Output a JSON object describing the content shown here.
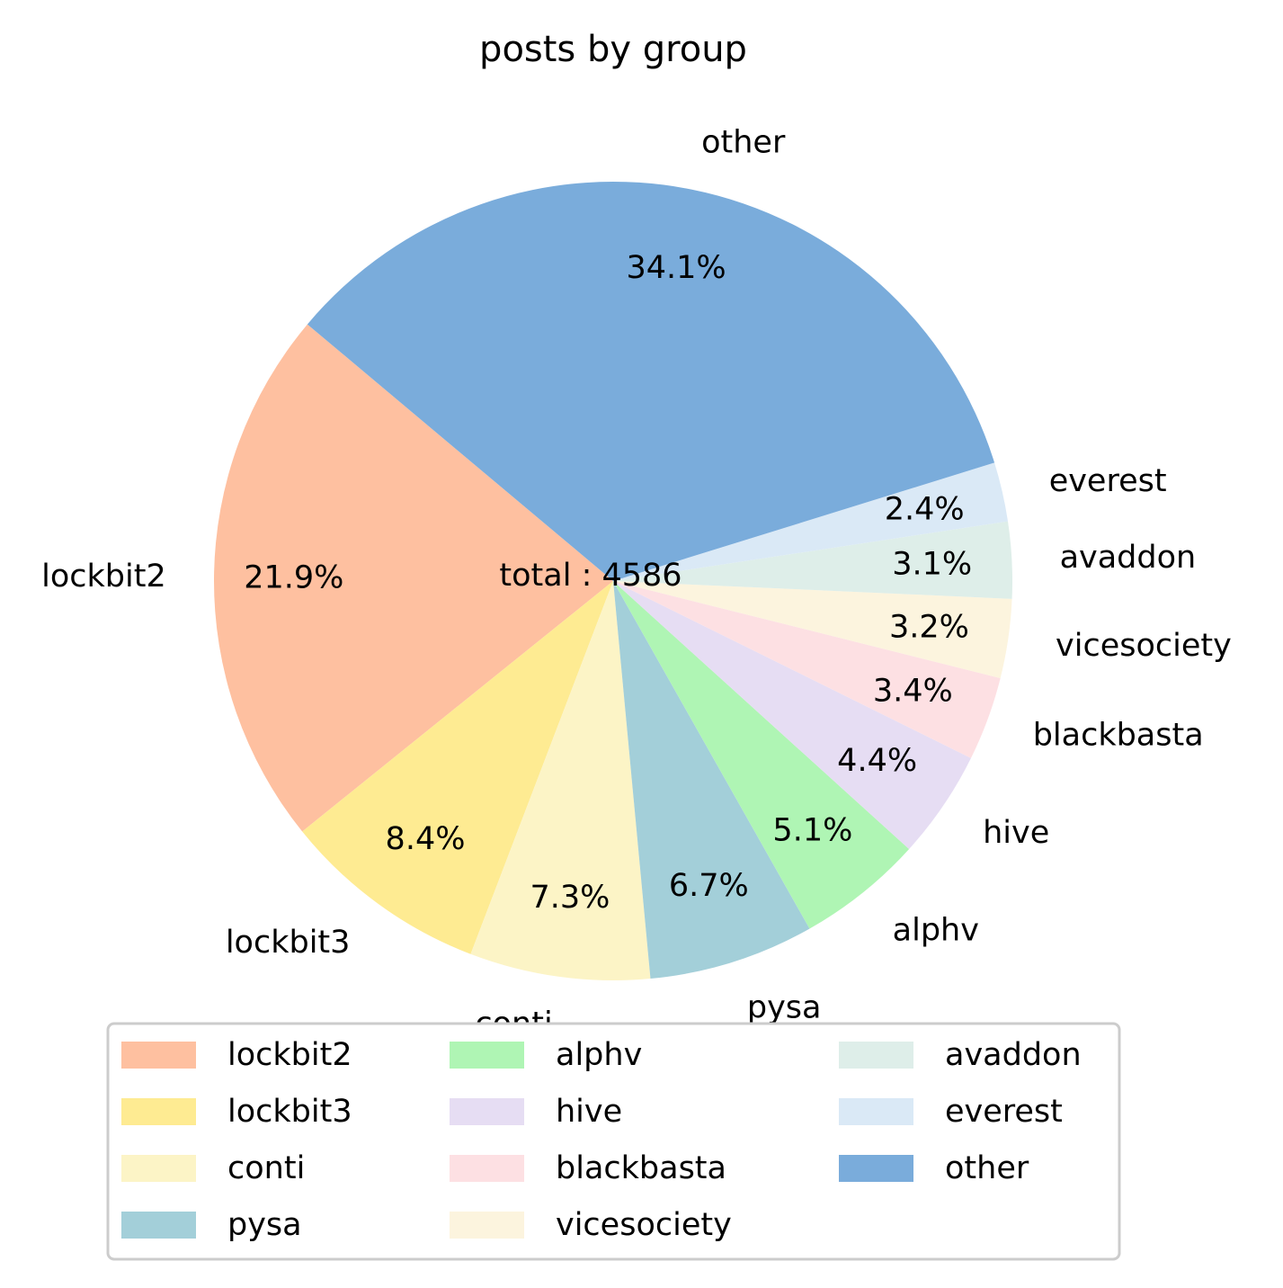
{
  "chart_data": {
    "type": "pie",
    "title": "posts by group",
    "center_label": "total : 4586",
    "legend_placement": "bottom",
    "legend_columns": 3,
    "slices": [
      {
        "label": "lockbit2",
        "pct": 21.9,
        "pct_text": "21.9%",
        "color": "#FEC0A0"
      },
      {
        "label": "lockbit3",
        "pct": 8.4,
        "pct_text": "8.4%",
        "color": "#FEEB92"
      },
      {
        "label": "conti",
        "pct": 7.3,
        "pct_text": "7.3%",
        "color": "#FCF4C6"
      },
      {
        "label": "pysa",
        "pct": 6.7,
        "pct_text": "6.7%",
        "color": "#A3CFD9"
      },
      {
        "label": "alphv",
        "pct": 5.1,
        "pct_text": "5.1%",
        "color": "#AFF5B4"
      },
      {
        "label": "hive",
        "pct": 4.4,
        "pct_text": "4.4%",
        "color": "#E6DDF3"
      },
      {
        "label": "blackbasta",
        "pct": 3.4,
        "pct_text": "3.4%",
        "color": "#FDE0E3"
      },
      {
        "label": "vicesociety",
        "pct": 3.2,
        "pct_text": "3.2%",
        "color": "#FCF4DE"
      },
      {
        "label": "avaddon",
        "pct": 3.1,
        "pct_text": "3.1%",
        "color": "#DEEEE9"
      },
      {
        "label": "everest",
        "pct": 2.4,
        "pct_text": "2.4%",
        "color": "#DAE9F6"
      },
      {
        "label": "other",
        "pct": 34.1,
        "pct_text": "34.1%",
        "color": "#7AACDB"
      }
    ]
  }
}
